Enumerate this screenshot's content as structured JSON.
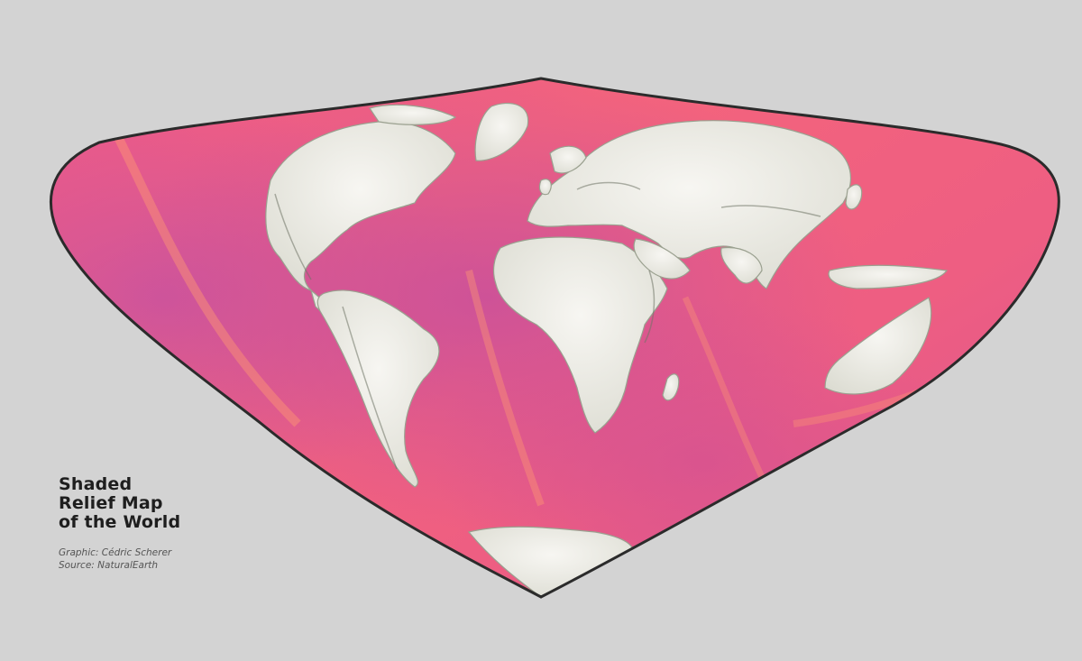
{
  "map": {
    "title_lines": [
      "Shaded",
      "Relief Map",
      "of the World"
    ],
    "credit": "Graphic: Cédric Scherer",
    "source": "Source: NaturalEarth",
    "projection_style": "butterfly-like pointed projection",
    "colors": {
      "background": "#d3d3d3",
      "outline": "#2b2b2b",
      "ocean_light": "#ff8a6b",
      "ocean_mid": "#f0607f",
      "ocean_deep": "#c14fa0",
      "land": "#f2f1ec",
      "land_shadow": "#b9bcb0"
    },
    "layers": [
      "ocean-bathymetry",
      "land-relief",
      "outline"
    ]
  }
}
